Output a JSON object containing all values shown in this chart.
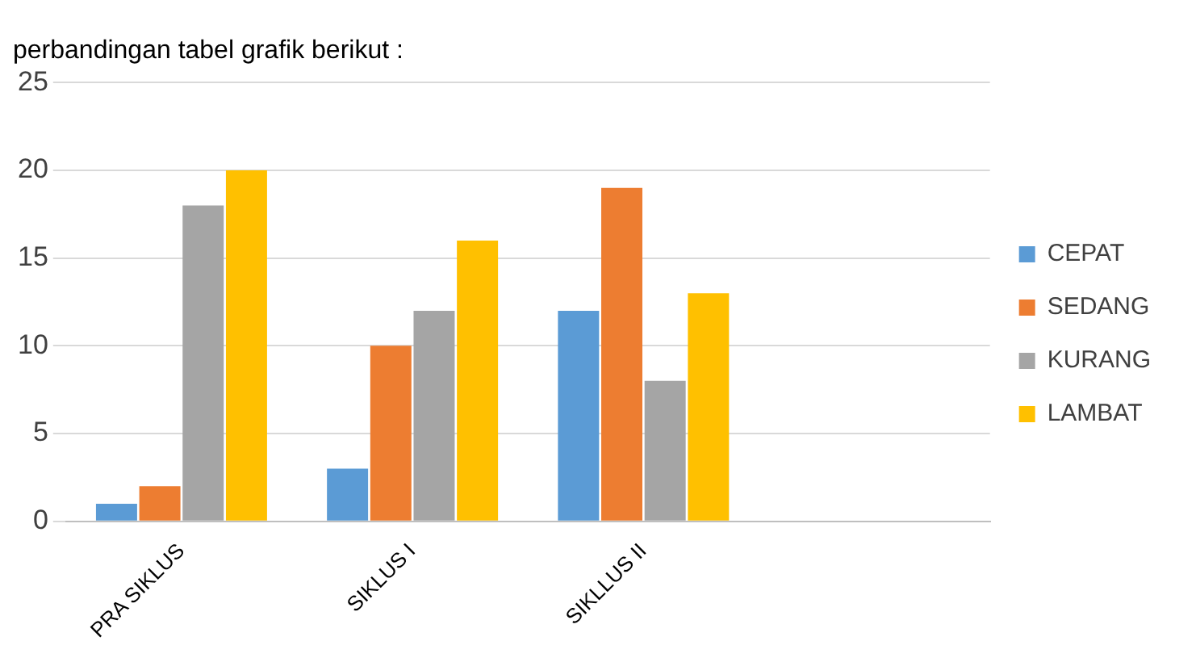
{
  "chart_data": {
    "type": "bar",
    "title": "perbandingan tabel grafik berikut :",
    "categories": [
      "PRA SIKLUS",
      "SIKLUS I",
      "SIKLLUS II",
      null
    ],
    "series": [
      {
        "name": "CEPAT",
        "color": "#5b9bd5",
        "values": [
          1,
          3,
          12,
          null
        ]
      },
      {
        "name": "SEDANG",
        "color": "#ed7d31",
        "values": [
          2,
          10,
          19,
          null
        ]
      },
      {
        "name": "KURANG",
        "color": "#a5a5a5",
        "values": [
          18,
          12,
          8,
          null
        ]
      },
      {
        "name": "LAMBAT",
        "color": "#ffc000",
        "values": [
          20,
          16,
          13,
          null
        ]
      }
    ],
    "ylim": [
      0,
      25
    ],
    "yticks": [
      0,
      5,
      10,
      15,
      20,
      25
    ],
    "grid": "y",
    "legend": "right"
  }
}
